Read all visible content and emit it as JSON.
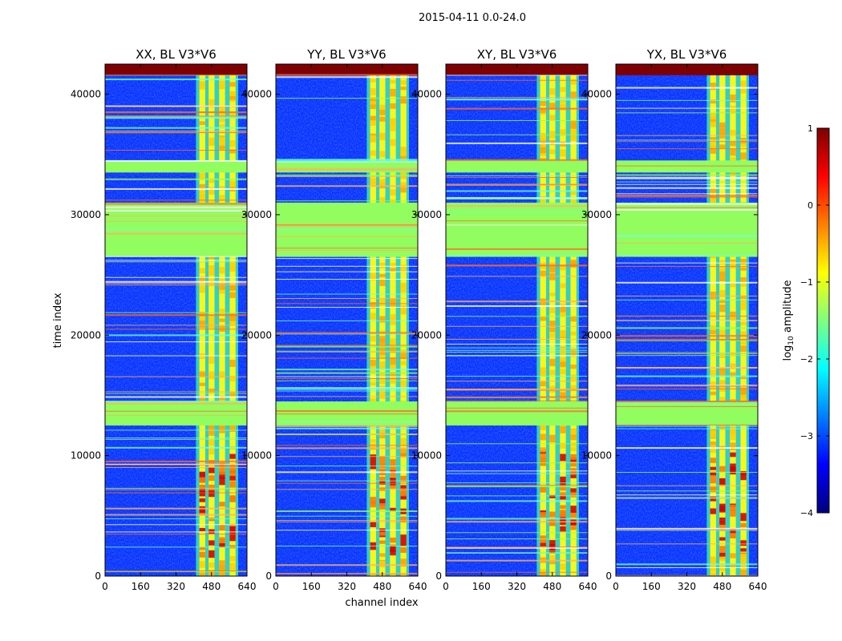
{
  "figure": {
    "title": "2015-04-11 0.0-24.0",
    "ylabel": "time index",
    "xlabel": "channel index"
  },
  "colorbar": {
    "label_prefix": "log",
    "label_sub": "10",
    "label_suffix": " amplitude",
    "range": [
      -4,
      1
    ],
    "ticks": [
      {
        "value": 1,
        "label": "1"
      },
      {
        "value": 0,
        "label": "0"
      },
      {
        "value": -1,
        "label": "−1"
      },
      {
        "value": -2,
        "label": "−2"
      },
      {
        "value": -3,
        "label": "−3"
      },
      {
        "value": -4,
        "label": "−4"
      }
    ],
    "stops": [
      "#00007f",
      "#0000ff",
      "#007fff",
      "#00ffff",
      "#7fff7f",
      "#ffff00",
      "#ff7f00",
      "#ff0000",
      "#7f0000"
    ]
  },
  "chart_data": {
    "type": "heatmap",
    "xlim": [
      0,
      640
    ],
    "ylim": [
      0,
      42500
    ],
    "xticks": [
      0,
      160,
      320,
      480,
      640
    ],
    "yticks": [
      0,
      10000,
      20000,
      30000,
      40000
    ],
    "rfi_channel_band": [
      410,
      600
    ],
    "flagged_time_ranges": [
      [
        12500,
        14500
      ],
      [
        26500,
        31000
      ],
      [
        33500,
        34500
      ]
    ],
    "panels": [
      {
        "title": "XX, BL V3*V6"
      },
      {
        "title": "YY, BL V3*V6"
      },
      {
        "title": "XY, BL V3*V6"
      },
      {
        "title": "YX, BL V3*V6"
      }
    ]
  }
}
